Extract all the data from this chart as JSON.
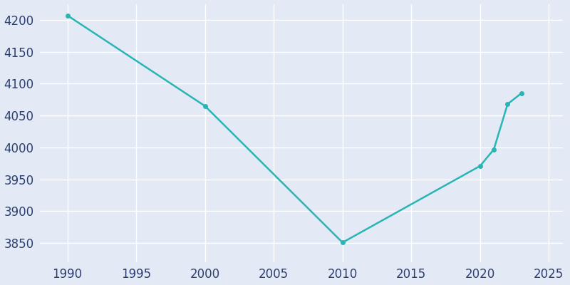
{
  "years": [
    1990,
    2000,
    2010,
    2020,
    2021,
    2022,
    2023
  ],
  "population": [
    4207,
    4065,
    3851,
    3971,
    3997,
    4068,
    4085
  ],
  "line_color": "#2ab5b5",
  "bg_color": "#e3eaf5",
  "marker": "o",
  "marker_size": 4,
  "line_width": 1.8,
  "xlim": [
    1988,
    2026
  ],
  "ylim": [
    3820,
    4225
  ],
  "xticks": [
    1990,
    1995,
    2000,
    2005,
    2010,
    2015,
    2020,
    2025
  ],
  "yticks": [
    3850,
    3900,
    3950,
    4000,
    4050,
    4100,
    4150,
    4200
  ],
  "grid_color": "#ffffff",
  "tick_color": "#2a3f6f",
  "tick_fontsize": 12
}
